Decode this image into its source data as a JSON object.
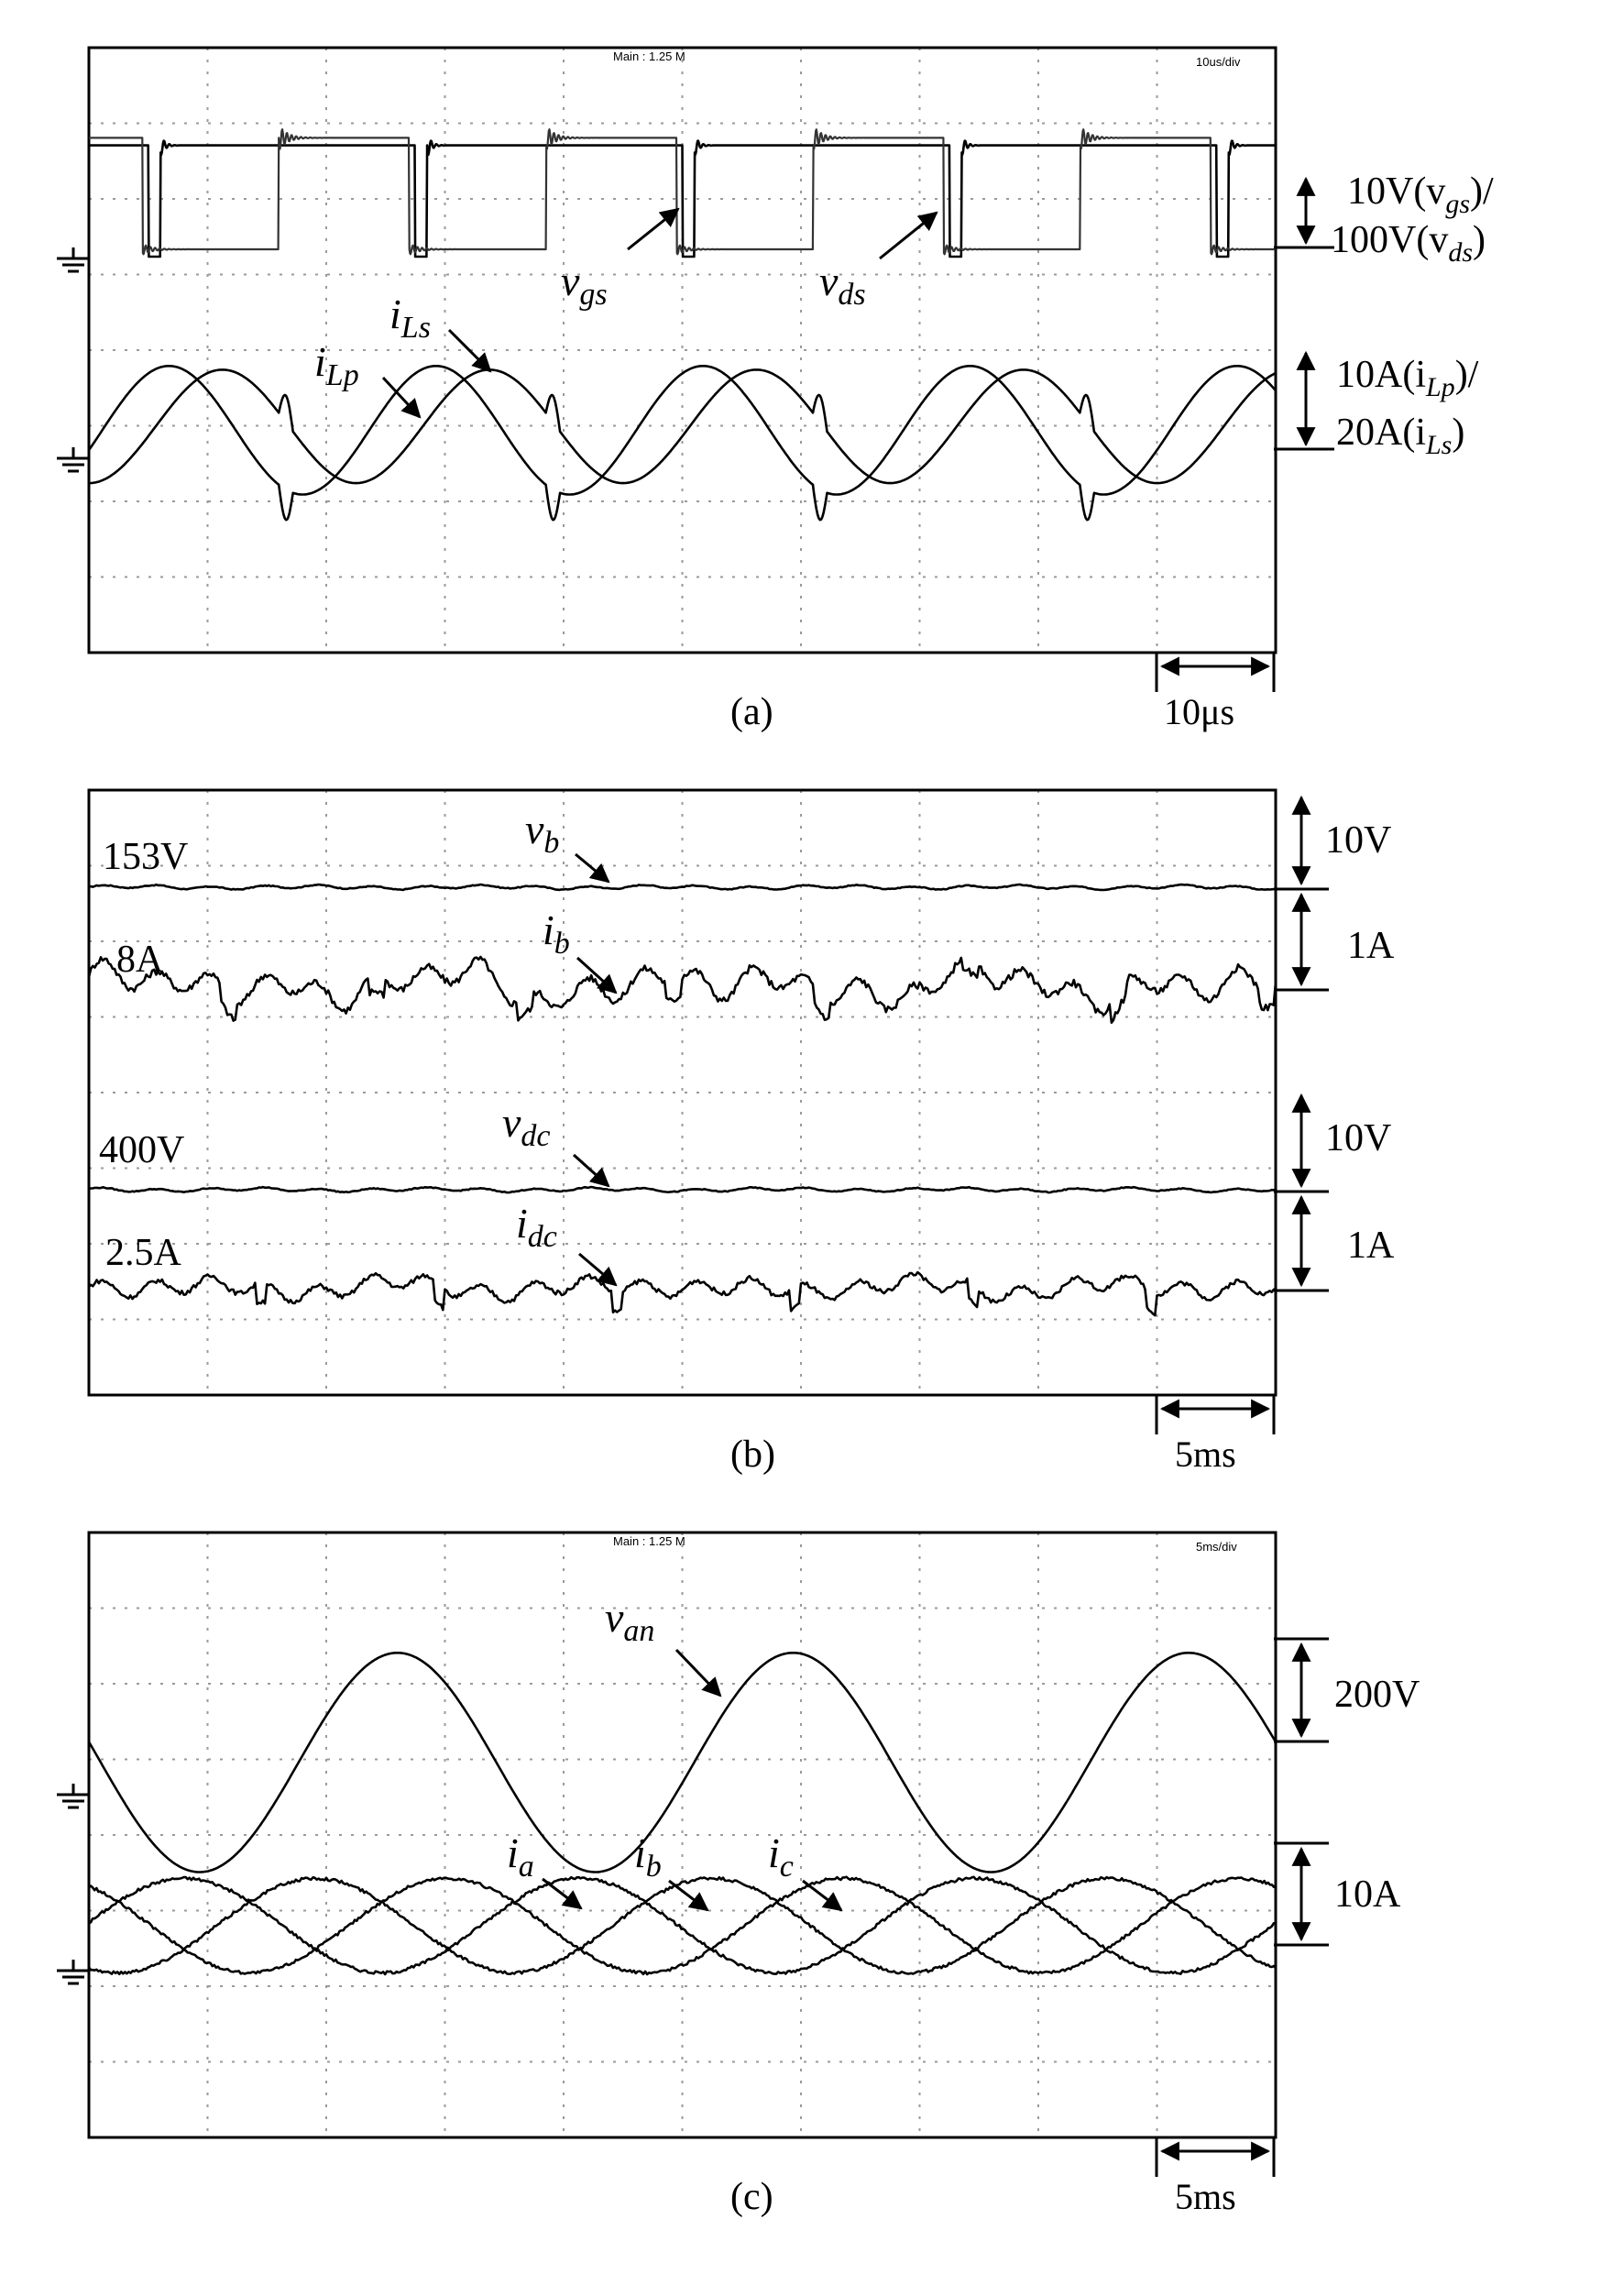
{
  "chart_data": [
    {
      "panel": "(a)",
      "type": "line",
      "header_center": "Main : 1.25 M",
      "header_right": "10us/div",
      "time_scale": "10μs",
      "scale_labels": [
        {
          "top": "10V(v",
          "top_sub": "gs",
          "top_end": ")/",
          "bottom": "100V(v",
          "bottom_sub": "ds",
          "bottom_end": ")"
        },
        {
          "top": "10A(i",
          "top_sub": "Lp",
          "top_end": ")/",
          "bottom": "20A(i",
          "bottom_sub": "Ls",
          "bottom_end": ")"
        }
      ],
      "series": [
        {
          "name": "v",
          "sub": "gs",
          "kind": "gate",
          "period_us": 22.5,
          "high_div": 1.35,
          "low_div": 0
        },
        {
          "name": "v",
          "sub": "ds",
          "kind": "drain",
          "period_us": 22.5,
          "high_div": 1.45,
          "low_div": 0
        },
        {
          "name": "i",
          "sub": "Lp",
          "kind": "sine",
          "period_us": 22.5,
          "amplitude_div": 0.75,
          "offset_div": 0.3
        },
        {
          "name": "i",
          "sub": "Ls",
          "kind": "sine",
          "period_us": 22.5,
          "amplitude_div": 0.85,
          "offset_div": 0.25
        }
      ],
      "xlim_us": [
        0,
        100
      ],
      "ylim_div": [
        -4,
        4
      ]
    },
    {
      "panel": "(b)",
      "type": "line",
      "time_scale": "5ms",
      "series": [
        {
          "name": "v",
          "sub": "b",
          "dc_label": "153V",
          "scale": "10V",
          "ripple_div": 0.02
        },
        {
          "name": "i",
          "sub": "b",
          "dc_label": "8A",
          "scale": "1A",
          "ripple_div": 0.15
        },
        {
          "name": "v",
          "sub": "dc",
          "dc_label": "400V",
          "scale": "10V",
          "ripple_div": 0.02
        },
        {
          "name": "i",
          "sub": "dc",
          "dc_label": "2.5A",
          "scale": "1A",
          "ripple_div": 0.1
        }
      ],
      "xlim_ms": [
        0,
        50
      ]
    },
    {
      "panel": "(c)",
      "type": "line",
      "header_center": "Main : 1.25 M",
      "header_right": "5ms/div",
      "time_scale": "5ms",
      "scale_labels": [
        "200V",
        "10A"
      ],
      "series": [
        {
          "name": "v",
          "sub": "an",
          "frequency_hz": 60,
          "amplitude_div": 1.45,
          "offset_div": 0.45
        },
        {
          "name": "i",
          "sub": "a",
          "frequency_hz": 60,
          "amplitude_div": 0.5,
          "phase_deg": 0
        },
        {
          "name": "i",
          "sub": "b",
          "frequency_hz": 60,
          "amplitude_div": 0.5,
          "phase_deg": -120
        },
        {
          "name": "i",
          "sub": "c",
          "frequency_hz": 60,
          "amplitude_div": 0.5,
          "phase_deg": 120
        }
      ],
      "xlim_ms": [
        0,
        50
      ]
    }
  ],
  "captions": [
    "(a)",
    "(b)",
    "(c)"
  ]
}
